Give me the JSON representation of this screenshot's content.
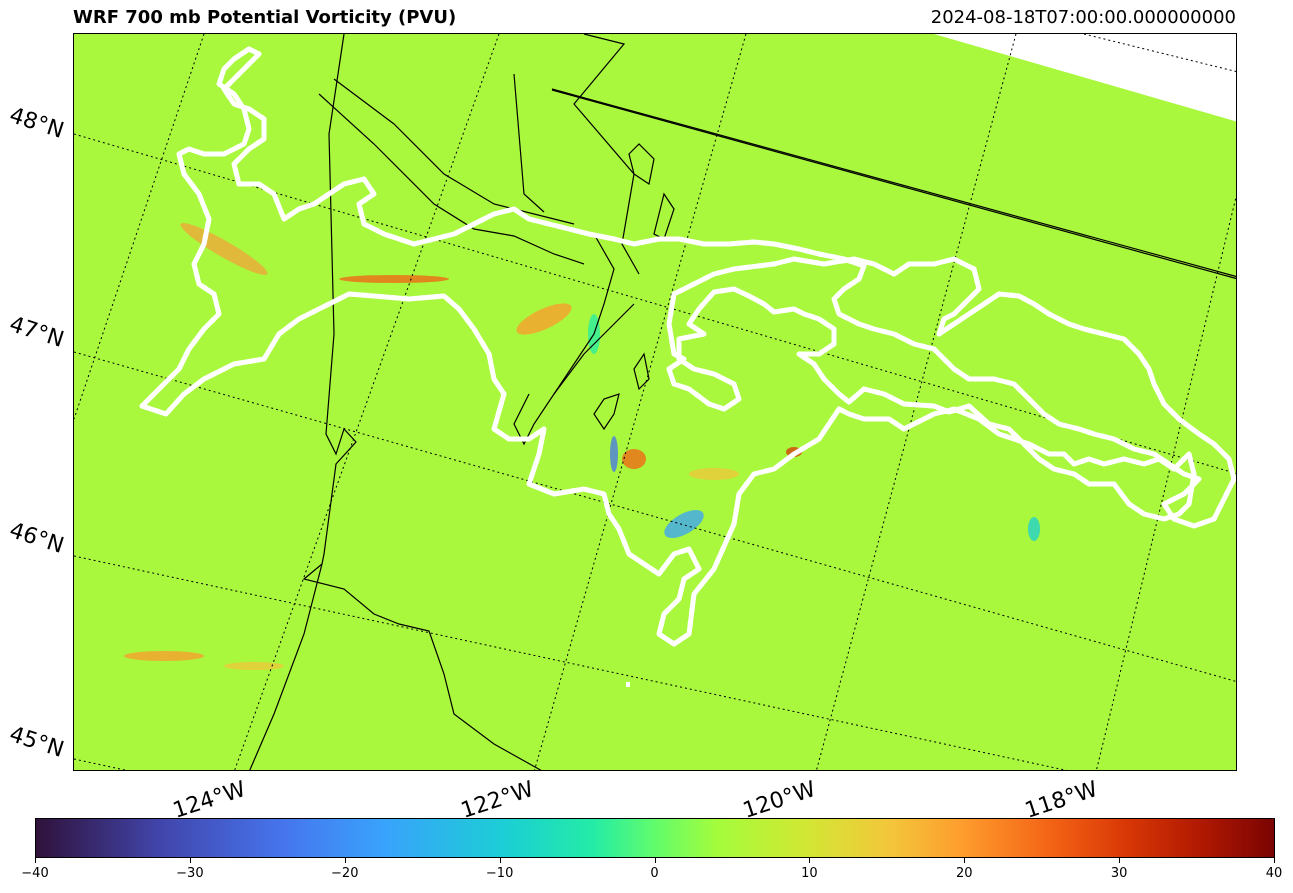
{
  "title": "WRF 700 mb Potential Vorticity (PVU)",
  "timestamp": "2024-08-18T07:00:00.000000000",
  "lat_labels": [
    "48°N",
    "47°N",
    "46°N",
    "45°N"
  ],
  "lon_labels": [
    "124°W",
    "122°W",
    "120°W",
    "118°W"
  ],
  "colorbar": {
    "min": -40,
    "max": 40,
    "tick_labels": [
      "−40",
      "−30",
      "−20",
      "−10",
      "0",
      "10",
      "20",
      "30",
      "40"
    ],
    "colormap": "turbo"
  },
  "colors": {
    "background_field": "#a9f83d",
    "contour_line": "#000000",
    "dashed_outline": "#ffffff"
  }
}
